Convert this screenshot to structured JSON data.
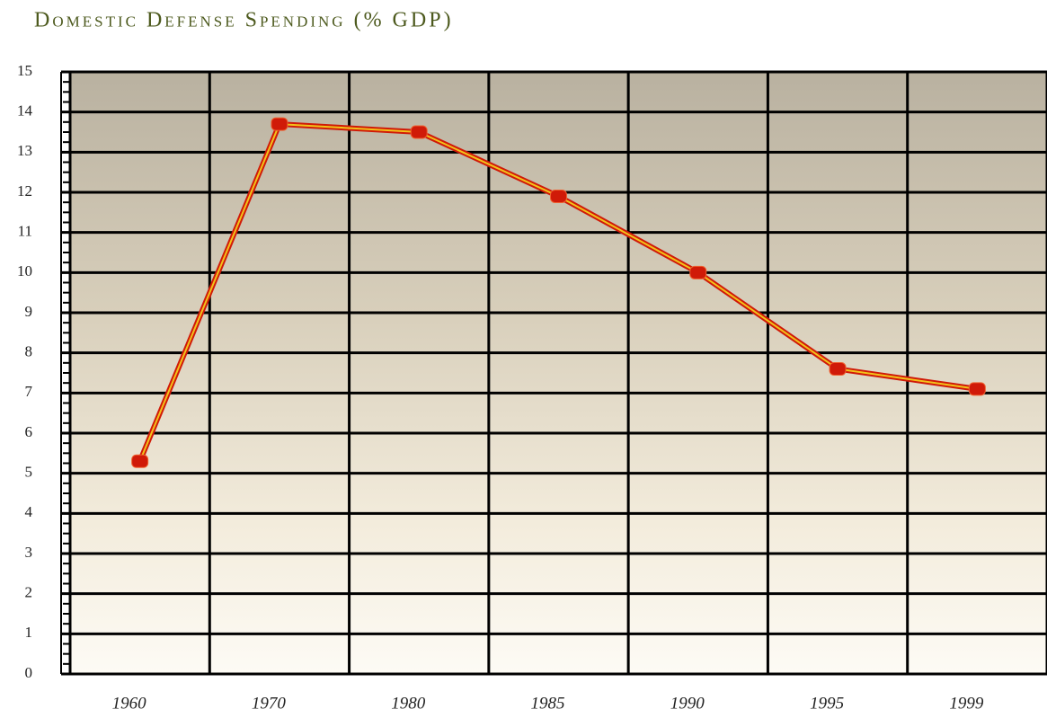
{
  "chart_data": {
    "type": "line",
    "title": "Domestic Defense Spending (% GDP)",
    "categories": [
      "1960",
      "1970",
      "1980",
      "1985",
      "1990",
      "1995",
      "1999"
    ],
    "values": [
      5.3,
      13.7,
      13.5,
      11.9,
      10.0,
      7.6,
      7.1
    ],
    "color": "#d01a08",
    "inner_color": "#f2c21a",
    "ylim": [
      0,
      15
    ],
    "yticks": [
      0,
      1,
      2,
      3,
      4,
      5,
      6,
      7,
      8,
      9,
      10,
      11,
      12,
      13,
      14,
      15
    ],
    "grid": true
  }
}
